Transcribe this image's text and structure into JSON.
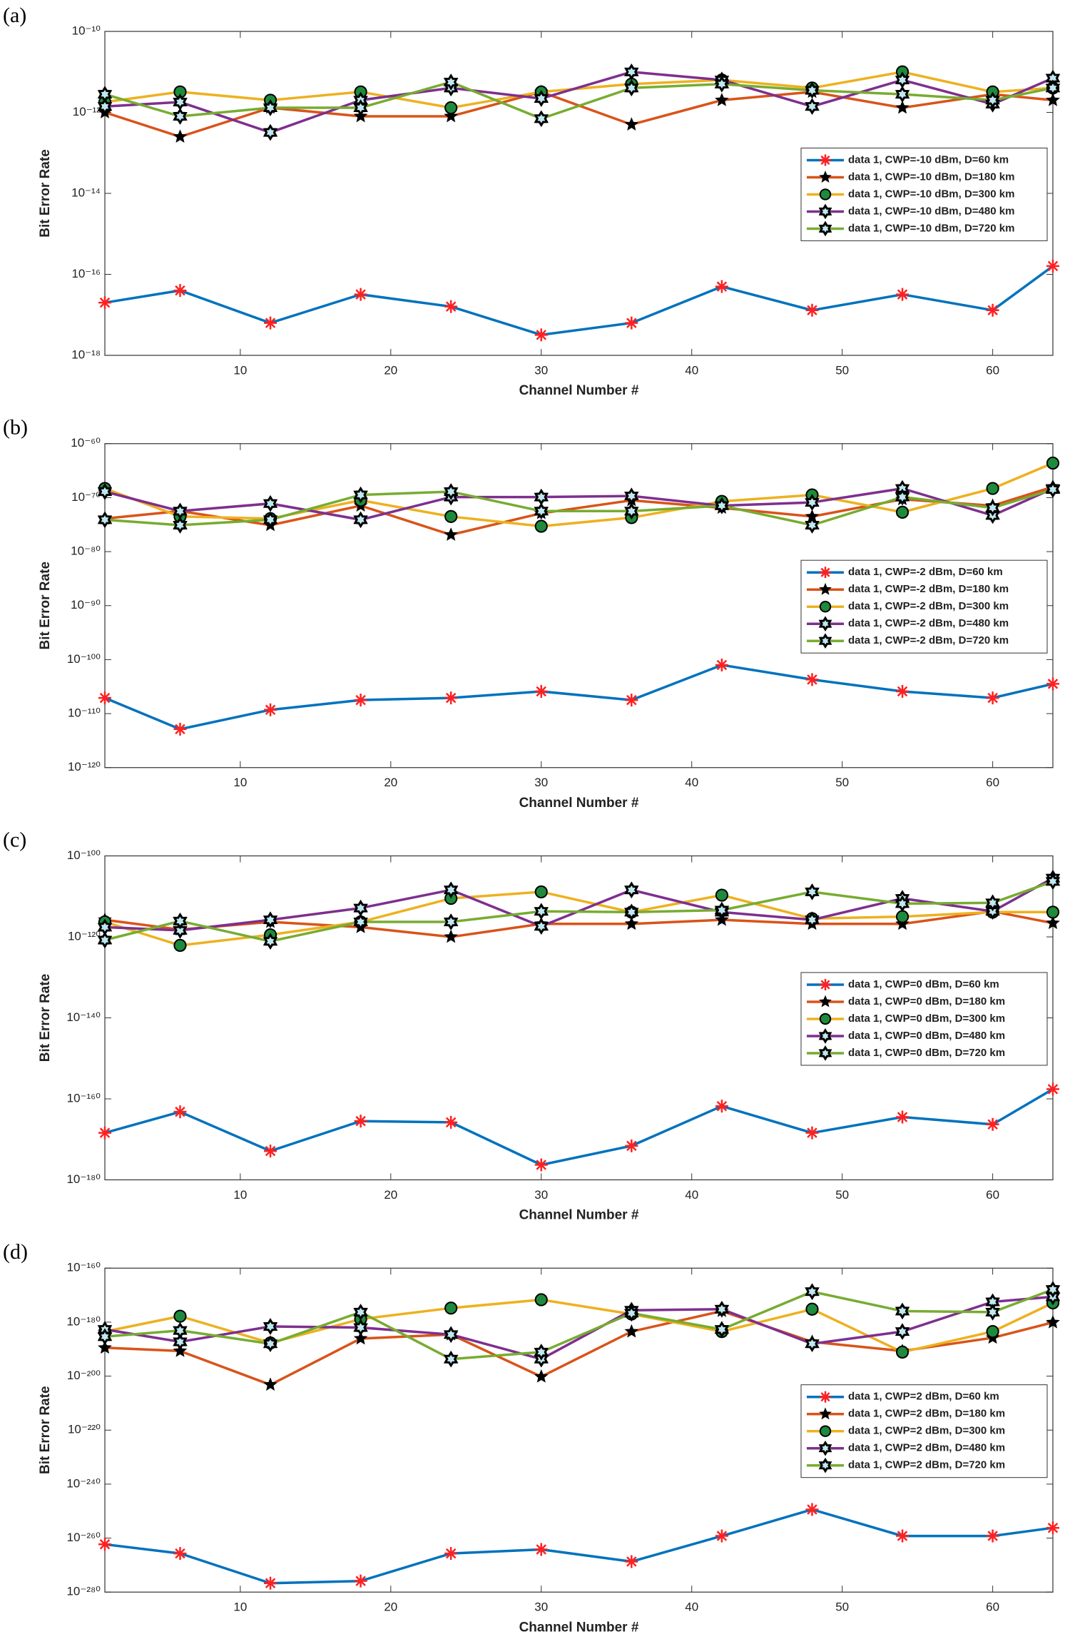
{
  "chart_data": [
    {
      "type": "line",
      "panel_label": "(a)",
      "y_scale": "log",
      "legend": "east",
      "ylabel": "Bit Error Rate",
      "xlabel": "Channel Number #",
      "x": [
        1,
        6,
        12,
        18,
        24,
        30,
        36,
        42,
        48,
        54,
        60,
        64
      ],
      "xlim": [
        1,
        64
      ],
      "xticks": [
        10,
        20,
        30,
        40,
        50,
        60
      ],
      "ylim": [
        1e-18,
        1e-10
      ],
      "yticks": [
        {
          "value": 1e-18,
          "label": "10⁻¹⁸"
        },
        {
          "value": 1e-16,
          "label": "10⁻¹⁶"
        },
        {
          "value": 1e-14,
          "label": "10⁻¹⁴"
        },
        {
          "value": 1e-12,
          "label": "10⁻¹²"
        },
        {
          "value": 1e-10,
          "label": "10⁻¹⁰"
        }
      ],
      "series": [
        {
          "name": "data 1, CWP=-10 dBm, D=60 km",
          "color": "#0072BD",
          "marker": "asterisk",
          "marker_color": "#ff2020",
          "values": [
            2e-17,
            4e-17,
            6.3e-18,
            3.2e-17,
            1.6e-17,
            3.2e-18,
            6.3e-18,
            5e-17,
            1.3e-17,
            3.2e-17,
            1.3e-17,
            1.6e-16
          ]
        },
        {
          "name": "data 1, CWP=-10 dBm, D=180 km",
          "color": "#D95319",
          "marker": "star",
          "marker_color": "#000000",
          "values": [
            1e-12,
            2.5e-13,
            1.3e-12,
            8e-13,
            8e-13,
            3.2e-12,
            5e-13,
            2e-12,
            3.2e-12,
            1.3e-12,
            2.8e-12,
            2e-12
          ]
        },
        {
          "name": "data 1, CWP=-10 dBm, D=300 km",
          "color": "#EDB120",
          "marker": "circle",
          "marker_color": "#1e8a3c",
          "values": [
            1.8e-12,
            3.2e-12,
            2e-12,
            3.2e-12,
            1.3e-12,
            3.2e-12,
            5e-12,
            6.3e-12,
            4e-12,
            1e-11,
            3.2e-12,
            4e-12
          ]
        },
        {
          "name": "data 1, CWP=-10 dBm, D=480 km",
          "color": "#7E2F8E",
          "marker": "hexagram",
          "marker_color": "#bfe8f0",
          "values": [
            1.4e-12,
            1.8e-12,
            3.2e-13,
            2e-12,
            4e-12,
            2.2e-12,
            1e-11,
            6.3e-12,
            1.4e-12,
            6.3e-12,
            1.6e-12,
            7e-12
          ]
        },
        {
          "name": "data 1, CWP=-10 dBm, D=720 km",
          "color": "#77AC30",
          "marker": "hexagram",
          "marker_color": "#bfe8f0",
          "values": [
            2.8e-12,
            8e-13,
            1.3e-12,
            1.3e-12,
            5.6e-12,
            7e-13,
            4e-12,
            5e-12,
            3.5e-12,
            2.8e-12,
            2e-12,
            4e-12
          ]
        }
      ]
    },
    {
      "type": "line",
      "panel_label": "(b)",
      "y_scale": "log",
      "legend": "east",
      "ylabel": "Bit Error Rate",
      "xlabel": "Channel Number #",
      "x": [
        1,
        6,
        12,
        18,
        24,
        30,
        36,
        42,
        48,
        54,
        60,
        64
      ],
      "xlim": [
        1,
        64
      ],
      "xticks": [
        10,
        20,
        30,
        40,
        50,
        60
      ],
      "ylim": [
        1e-120,
        1e-60
      ],
      "yticks": [
        {
          "value": 1e-120,
          "label": "10⁻¹²⁰"
        },
        {
          "value": 1e-110,
          "label": "10⁻¹¹⁰"
        },
        {
          "value": 1e-100,
          "label": "10⁻¹⁰⁰"
        },
        {
          "value": 1e-90,
          "label": "10⁻⁹⁰"
        },
        {
          "value": 1e-80,
          "label": "10⁻⁸⁰"
        },
        {
          "value": 1e-70,
          "label": "10⁻⁷⁰"
        },
        {
          "value": 1e-60,
          "label": "10⁻⁶⁰"
        }
      ],
      "series": [
        {
          "name": "data 1, CWP=-2 dBm, D=60 km",
          "color": "#0072BD",
          "marker": "asterisk",
          "marker_color": "#ff2020",
          "values": [
            8e-108,
            1.3e-113,
            5e-110,
            3.2e-108,
            8e-108,
            1.3e-106,
            3.2e-108,
            1e-101,
            2e-104,
            1.3e-106,
            8e-108,
            3.2e-105
          ]
        },
        {
          "name": "data 1, CWP=-2 dBm, D=180 km",
          "color": "#D95319",
          "marker": "star",
          "marker_color": "#000000",
          "values": [
            1.3e-74,
            3.2e-73,
            8e-76,
            3.2e-72,
            1.3e-77,
            1.3e-73,
            3.2e-71,
            1.3e-72,
            3.2e-74,
            5e-71,
            3.2e-72,
            1e-68
          ]
        },
        {
          "name": "data 1, CWP=-2 dBm, D=300 km",
          "color": "#EDB120",
          "marker": "circle",
          "marker_color": "#1e8a3c",
          "values": [
            5e-69,
            3.2e-74,
            1.3e-74,
            3.2e-71,
            3.2e-74,
            5e-76,
            2e-74,
            2e-71,
            3.2e-70,
            2e-73,
            5e-69,
            2.5e-64
          ]
        },
        {
          "name": "data 1, CWP=-2 dBm, D=480 km",
          "color": "#7E2F8E",
          "marker": "hexagram",
          "marker_color": "#bfe8f0",
          "values": [
            1.3e-69,
            3.2e-73,
            8e-72,
            8e-75,
            1.3e-70,
            1.3e-70,
            2e-70,
            3.2e-72,
            1.3e-71,
            5e-69,
            5e-74,
            5e-69
          ]
        },
        {
          "name": "data 1, CWP=-2 dBm, D=720 km",
          "color": "#77AC30",
          "marker": "hexagram",
          "marker_color": "#bfe8f0",
          "values": [
            8e-75,
            8e-76,
            8e-75,
            3.2e-70,
            1.3e-69,
            3.2e-73,
            3.2e-73,
            3.2e-72,
            8e-76,
            1.3e-70,
            1.3e-72,
            3.2e-69
          ]
        }
      ]
    },
    {
      "type": "line",
      "panel_label": "(c)",
      "y_scale": "log",
      "legend": "east",
      "ylabel": "Bit Error Rate",
      "xlabel": "Channel Number #",
      "x": [
        1,
        6,
        12,
        18,
        24,
        30,
        36,
        42,
        48,
        54,
        60,
        64
      ],
      "xlim": [
        1,
        64
      ],
      "xticks": [
        10,
        20,
        30,
        40,
        50,
        60
      ],
      "ylim": [
        1e-180,
        1e-100
      ],
      "yticks": [
        {
          "value": 1e-180,
          "label": "10⁻¹⁸⁰"
        },
        {
          "value": 1e-160,
          "label": "10⁻¹⁶⁰"
        },
        {
          "value": 1e-140,
          "label": "10⁻¹⁴⁰"
        },
        {
          "value": 1e-120,
          "label": "10⁻¹²⁰"
        },
        {
          "value": 1e-100,
          "label": "10⁻¹⁰⁰"
        }
      ],
      "series": [
        {
          "name": "data 1, CWP=0 dBm, D=60 km",
          "color": "#0072BD",
          "marker": "asterisk",
          "marker_color": "#ff2020",
          "values": [
            4e-169,
            6.3e-164,
            1.3e-173,
            3.2e-166,
            1.6e-166,
            5e-177,
            2.5e-172,
            1.6e-162,
            4e-169,
            3.2e-165,
            5e-167,
            2.5e-158
          ]
        },
        {
          "name": "data 1, CWP=0 dBm, D=180 km",
          "color": "#D95319",
          "marker": "star",
          "marker_color": "#000000",
          "values": [
            1.6e-116,
            6.3e-119,
            5e-117,
            2.5e-118,
            1e-120,
            1.6e-117,
            1.6e-117,
            1.6e-116,
            1.6e-117,
            1.6e-117,
            2e-114,
            2.5e-117
          ]
        },
        {
          "name": "data 1, CWP=0 dBm, D=300 km",
          "color": "#EDB120",
          "marker": "circle",
          "marker_color": "#1e8a3c",
          "values": [
            5e-117,
            8e-123,
            3.2e-120,
            5e-117,
            3.2e-111,
            1.3e-109,
            1.3e-114,
            2e-110,
            3.2e-116,
            1e-115,
            1.3e-114,
            1.3e-114
          ]
        },
        {
          "name": "data 1, CWP=0 dBm, D=480 km",
          "color": "#7E2F8E",
          "marker": "hexagram",
          "marker_color": "#bfe8f0",
          "values": [
            2.5e-118,
            4e-119,
            1.6e-116,
            1.3e-113,
            4e-109,
            4e-118,
            4e-109,
            1.3e-114,
            1.6e-116,
            3.2e-111,
            2e-114,
            3.2e-106
          ]
        },
        {
          "name": "data 1, CWP=0 dBm, D=720 km",
          "color": "#77AC30",
          "marker": "hexagram",
          "marker_color": "#bfe8f0",
          "values": [
            1.6e-121,
            8e-117,
            8e-122,
            5e-117,
            5e-117,
            2e-114,
            1.3e-114,
            4e-114,
            1.3e-109,
            1.6e-112,
            2.5e-112,
            5e-107
          ]
        }
      ]
    },
    {
      "type": "line",
      "panel_label": "(d)",
      "y_scale": "log",
      "legend": "east",
      "ylabel": "Bit Error Rate",
      "xlabel": "Channel Number #",
      "x": [
        1,
        6,
        12,
        18,
        24,
        30,
        36,
        42,
        48,
        54,
        60,
        64
      ],
      "xlim": [
        1,
        64
      ],
      "xticks": [
        10,
        20,
        30,
        40,
        50,
        60
      ],
      "ylim": [
        1e-280,
        1e-160
      ],
      "yticks": [
        {
          "value": 1e-280,
          "label": "10⁻²⁸⁰"
        },
        {
          "value": 1e-260,
          "label": "10⁻²⁶⁰"
        },
        {
          "value": 1e-240,
          "label": "10⁻²⁴⁰"
        },
        {
          "value": 1e-220,
          "label": "10⁻²²⁰"
        },
        {
          "value": 1e-200,
          "label": "10⁻²⁰⁰"
        },
        {
          "value": 1e-180,
          "label": "10⁻¹⁸⁰"
        },
        {
          "value": 1e-160,
          "label": "10⁻¹⁶⁰"
        }
      ],
      "series": [
        {
          "name": "data 1, CWP=2 dBm, D=60 km",
          "color": "#0072BD",
          "marker": "asterisk",
          "marker_color": "#ff2020",
          "values": [
            5e-263,
            2e-266,
            2e-277,
            1.3e-276,
            2e-266,
            6.3e-265,
            2e-269,
            6.3e-260,
            4e-250,
            6.3e-260,
            6.3e-260,
            6.3e-257
          ]
        },
        {
          "name": "data 1, CWP=2 dBm, D=180 km",
          "color": "#D95319",
          "marker": "star",
          "marker_color": "#000000",
          "values": [
            3.2e-190,
            2e-191,
            6.3e-204,
            8e-187,
            2.5e-185,
            6.3e-201,
            3.2e-184,
            1.3e-176,
            5e-188,
            2e-191,
            1.6e-186,
            8e-181
          ]
        },
        {
          "name": "data 1, CWP=2 dBm, D=300 km",
          "color": "#EDB120",
          "marker": "circle",
          "marker_color": "#1e8a3c",
          "values": [
            3.2e-184,
            1.6e-178,
            2e-188,
            1.3e-179,
            1.6e-175,
            2e-172,
            1e-177,
            3.2e-184,
            6.3e-176,
            8e-192,
            3.2e-184,
            1.3e-173
          ]
        },
        {
          "name": "data 1, CWP=2 dBm, D=480 km",
          "color": "#7E2F8E",
          "marker": "hexagram",
          "marker_color": "#bfe8f0",
          "values": [
            2e-183,
            5e-188,
            2.5e-182,
            1e-182,
            2.5e-185,
            2e-194,
            2.5e-176,
            6.3e-176,
            1e-188,
            3.2e-184,
            3.2e-173,
            2.5e-171
          ]
        },
        {
          "name": "data 1, CWP=2 dBm, D=720 km",
          "color": "#77AC30",
          "marker": "hexagram",
          "marker_color": "#bfe8f0",
          "values": [
            4e-186,
            8e-184,
            1e-188,
            5e-177,
            2e-194,
            8e-192,
            2e-177,
            2e-183,
            2e-169,
            1.3e-176,
            5e-177,
            1.3e-168
          ]
        }
      ]
    }
  ]
}
